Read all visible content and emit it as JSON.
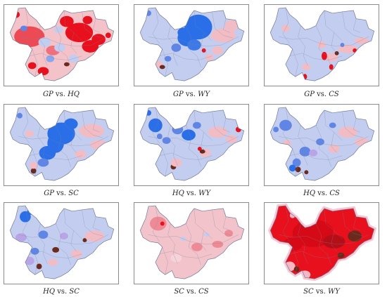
{
  "panels": [
    {
      "id": "gp-hq",
      "caption": {
        "a": "GP",
        "vs": " vs. ",
        "b": "HQ"
      },
      "theme": "gp-hq"
    },
    {
      "id": "gp-wy",
      "caption": {
        "a": "GP",
        "vs": " vs. ",
        "b": "WY"
      },
      "theme": "gp-wy"
    },
    {
      "id": "gp-cs",
      "caption": {
        "a": "GP",
        "vs": " vs. ",
        "b": "CS"
      },
      "theme": "gp-cs"
    },
    {
      "id": "gp-sc",
      "caption": {
        "a": "GP",
        "vs": " vs. ",
        "b": "SC"
      },
      "theme": "gp-sc"
    },
    {
      "id": "hq-wy",
      "caption": {
        "a": "HQ",
        "vs": " vs. ",
        "b": "WY"
      },
      "theme": "hq-wy"
    },
    {
      "id": "hq-cs",
      "caption": {
        "a": "HQ",
        "vs": " vs. ",
        "b": "CS"
      },
      "theme": "hq-cs"
    },
    {
      "id": "hq-sc",
      "caption": {
        "a": "HQ",
        "vs": " vs. ",
        "b": "SC"
      },
      "theme": "hq-sc"
    },
    {
      "id": "sc-cs",
      "caption": {
        "a": "SC",
        "vs": " vs. ",
        "b": "CS"
      },
      "theme": "sc-cs"
    },
    {
      "id": "sc-wy",
      "caption": {
        "a": "SC",
        "vs": " vs. ",
        "b": "WY"
      },
      "theme": "sc-wy"
    }
  ],
  "colors": {
    "base_blue": "#c3cdf0",
    "base_pink": "#f2bcc4",
    "strong_blue": "#2a6fe8",
    "mid_blue": "#5f86e6",
    "strong_red": "#e8101c",
    "mid_red": "#ee8a95",
    "dark_brown": "#6b2a1c",
    "violet": "#b9a4e6"
  }
}
